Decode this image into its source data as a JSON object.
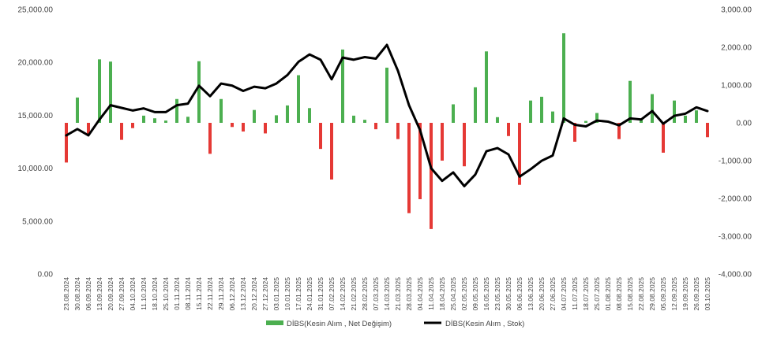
{
  "chart_data": {
    "type": "bar",
    "categories": [
      "23.08.2024",
      "30.08.2024",
      "06.09.2024",
      "13.09.2024",
      "20.09.2024",
      "27.09.2024",
      "04.10.2024",
      "11.10.2024",
      "18.10.2024",
      "25.10.2024",
      "01.11.2024",
      "08.11.2024",
      "15.11.2024",
      "22.11.2024",
      "29.11.2024",
      "06.12.2024",
      "13.12.2024",
      "20.12.2024",
      "27.12.2024",
      "03.01.2025",
      "10.01.2025",
      "17.01.2025",
      "24.01.2025",
      "31.01.2025",
      "07.02.2025",
      "14.02.2025",
      "21.02.2025",
      "28.02.2025",
      "07.03.2025",
      "14.03.2025",
      "21.03.2025",
      "28.03.2025",
      "04.04.2025",
      "11.04.2025",
      "18.04.2025",
      "25.04.2025",
      "02.05.2025",
      "09.05.2025",
      "16.05.2025",
      "23.05.2025",
      "30.05.2025",
      "06.06.2025",
      "13.06.2025",
      "20.06.2025",
      "27.06.2025",
      "04.07.2025",
      "11.07.2025",
      "18.07.2025",
      "25.07.2025",
      "01.08.2025",
      "08.08.2025",
      "15.08.2025",
      "22.08.2025",
      "29.08.2025",
      "05.09.2025",
      "12.09.2025",
      "19.09.2025",
      "26.09.2025",
      "03.10.2025"
    ],
    "series": [
      {
        "name": "DİBS(Kesin Alım , Net Değişim)",
        "type": "bar",
        "axis": "right",
        "values": [
          -1050,
          670,
          -300,
          1680,
          1620,
          -450,
          -140,
          190,
          120,
          60,
          630,
          160,
          1630,
          -820,
          630,
          -110,
          -230,
          340,
          -280,
          200,
          460,
          1260,
          390,
          -690,
          -1500,
          1940,
          190,
          80,
          -170,
          1460,
          -430,
          -2390,
          -2020,
          -2810,
          -1000,
          490,
          -1150,
          940,
          1890,
          150,
          -350,
          -1640,
          590,
          690,
          300,
          2370,
          -500,
          50,
          260,
          0,
          -430,
          1110,
          110,
          760,
          -790,
          590,
          190,
          330,
          -380
        ]
      },
      {
        "name": "DİBS(Kesin Alım , Stok)",
        "type": "line",
        "axis": "left",
        "values": [
          13100,
          13700,
          13100,
          14600,
          15950,
          15700,
          15450,
          15650,
          15300,
          15300,
          15950,
          16100,
          17800,
          16800,
          18000,
          17800,
          17300,
          17700,
          17550,
          18000,
          18800,
          20050,
          20750,
          20250,
          18400,
          20450,
          20250,
          20500,
          20350,
          21650,
          19200,
          15950,
          13600,
          10000,
          8800,
          9600,
          8300,
          9400,
          11600,
          11900,
          11300,
          9200,
          9900,
          10700,
          11200,
          14700,
          14100,
          13950,
          14500,
          14400,
          14050,
          14700,
          14600,
          15400,
          14200,
          14950,
          15150,
          15750,
          15400
        ]
      }
    ],
    "y_left": {
      "ylim": [
        0,
        25000
      ],
      "ticks": [
        "0.00",
        "5,000.00",
        "10,000.00",
        "15,000.00",
        "20,000.00",
        "25,000.00"
      ]
    },
    "y_right": {
      "ylim": [
        -4000,
        3000
      ],
      "ticks": [
        "-4,000.00",
        "-3,000.00",
        "-2,000.00",
        "-1,000.00",
        "0.00",
        "1,000.00",
        "2,000.00",
        "3,000.00"
      ]
    },
    "colors": {
      "positive": "#4caf50",
      "negative": "#e53935",
      "line": "#000000"
    },
    "grid": false,
    "legend": {
      "position": "bottom",
      "items": [
        {
          "label": "DİBS(Kesin Alım , Net Değişim)",
          "color": "#4caf50",
          "shape": "square"
        },
        {
          "label": "DİBS(Kesin Alım , Stok)",
          "color": "#000000",
          "shape": "line"
        }
      ]
    },
    "title": "",
    "xlabel": "",
    "ylabel": ""
  }
}
